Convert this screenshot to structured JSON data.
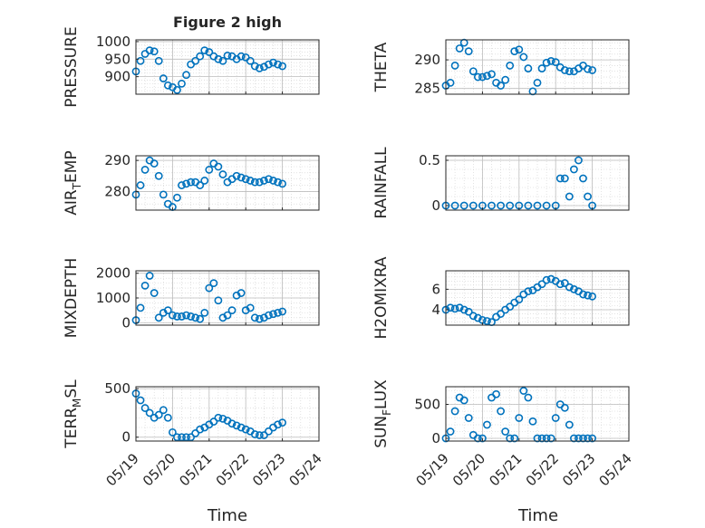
{
  "figure": {
    "title": "Figure 2 high",
    "marker_color": "#0072bd",
    "x_label": "Time"
  },
  "x_axis": {
    "range": [
      "05/19",
      "05/24"
    ],
    "ticks": [
      "05/19",
      "05/20",
      "05/21",
      "05/22",
      "05/23",
      "05/24"
    ]
  },
  "chart_data": [
    {
      "type": "scatter",
      "title": "Figure 2 high",
      "xlabel": "Time",
      "ylabel": "PRESSURE",
      "ylim": [
        850,
        1005
      ],
      "yticks": [
        900,
        950,
        1000
      ],
      "grid": true,
      "x": [
        "05/19 00:00",
        "05/19 03:00",
        "05/19 06:00",
        "05/19 09:00",
        "05/19 12:00",
        "05/19 15:00",
        "05/19 18:00",
        "05/19 21:00",
        "05/20 00:00",
        "05/20 03:00",
        "05/20 06:00",
        "05/20 09:00",
        "05/20 12:00",
        "05/20 15:00",
        "05/20 18:00",
        "05/20 21:00",
        "05/21 00:00",
        "05/21 03:00",
        "05/21 06:00",
        "05/21 09:00",
        "05/21 12:00",
        "05/21 15:00",
        "05/21 18:00",
        "05/21 21:00",
        "05/22 00:00",
        "05/22 03:00",
        "05/22 06:00",
        "05/22 09:00",
        "05/22 12:00",
        "05/22 15:00",
        "05/22 18:00",
        "05/22 21:00",
        "05/23 00:00"
      ],
      "values": [
        915,
        945,
        965,
        975,
        972,
        945,
        895,
        875,
        870,
        862,
        880,
        905,
        935,
        945,
        958,
        975,
        970,
        958,
        950,
        945,
        960,
        958,
        950,
        958,
        955,
        945,
        930,
        924,
        928,
        935,
        940,
        935,
        930
      ]
    },
    {
      "type": "scatter",
      "ylabel": "THETA",
      "ylim": [
        284,
        293.5
      ],
      "yticks": [
        285,
        290
      ],
      "grid": true,
      "x": [
        "05/19 00:00",
        "05/19 03:00",
        "05/19 06:00",
        "05/19 09:00",
        "05/19 12:00",
        "05/19 15:00",
        "05/19 18:00",
        "05/19 21:00",
        "05/20 00:00",
        "05/20 03:00",
        "05/20 06:00",
        "05/20 09:00",
        "05/20 12:00",
        "05/20 15:00",
        "05/20 18:00",
        "05/20 21:00",
        "05/21 00:00",
        "05/21 03:00",
        "05/21 06:00",
        "05/21 09:00",
        "05/21 12:00",
        "05/21 15:00",
        "05/21 18:00",
        "05/21 21:00",
        "05/22 00:00",
        "05/22 03:00",
        "05/22 06:00",
        "05/22 09:00",
        "05/22 12:00",
        "05/22 15:00",
        "05/22 18:00",
        "05/22 21:00",
        "05/23 00:00"
      ],
      "values": [
        285.5,
        286,
        289,
        292,
        293,
        291.5,
        288,
        287,
        287,
        287.2,
        287.5,
        286,
        285.5,
        286.5,
        289,
        291.5,
        291.8,
        290.5,
        288.5,
        284.5,
        286,
        288.5,
        289.5,
        289.8,
        289.6,
        288.7,
        288.2,
        288,
        288,
        288.5,
        289,
        288.4,
        288.2
      ]
    },
    {
      "type": "scatter",
      "ylabel": "AIR_TEMP",
      "ylim": [
        274,
        291.5
      ],
      "yticks": [
        280,
        290
      ],
      "grid": true,
      "x": [
        "05/19 00:00",
        "05/19 03:00",
        "05/19 06:00",
        "05/19 09:00",
        "05/19 12:00",
        "05/19 15:00",
        "05/19 18:00",
        "05/19 21:00",
        "05/20 00:00",
        "05/20 03:00",
        "05/20 06:00",
        "05/20 09:00",
        "05/20 12:00",
        "05/20 15:00",
        "05/20 18:00",
        "05/20 21:00",
        "05/21 00:00",
        "05/21 03:00",
        "05/21 06:00",
        "05/21 09:00",
        "05/21 12:00",
        "05/21 15:00",
        "05/21 18:00",
        "05/21 21:00",
        "05/22 00:00",
        "05/22 03:00",
        "05/22 06:00",
        "05/22 09:00",
        "05/22 12:00",
        "05/22 15:00",
        "05/22 18:00",
        "05/22 21:00",
        "05/23 00:00"
      ],
      "values": [
        279,
        282,
        287,
        290,
        289,
        285,
        279,
        276,
        275,
        278,
        282,
        282.5,
        283,
        283,
        282,
        283.5,
        287,
        289,
        288,
        285.5,
        283,
        284,
        285,
        284.5,
        284,
        283.5,
        283,
        283,
        283.5,
        284,
        283.5,
        283,
        282.5
      ]
    },
    {
      "type": "scatter",
      "ylabel": "RAINFALL",
      "ylim": [
        -0.05,
        0.55
      ],
      "yticks": [
        0,
        0.5
      ],
      "grid": true,
      "x": [
        "05/19 00:00",
        "05/19 06:00",
        "05/19 12:00",
        "05/19 18:00",
        "05/20 00:00",
        "05/20 06:00",
        "05/20 12:00",
        "05/20 18:00",
        "05/21 00:00",
        "05/21 06:00",
        "05/21 12:00",
        "05/21 18:00",
        "05/22 00:00",
        "05/22 03:00",
        "05/22 06:00",
        "05/22 09:00",
        "05/22 12:00",
        "05/22 15:00",
        "05/22 18:00",
        "05/22 21:00",
        "05/23 00:00"
      ],
      "values": [
        0,
        0,
        0,
        0,
        0,
        0,
        0,
        0,
        0,
        0,
        0,
        0,
        0,
        0.3,
        0.3,
        0.1,
        0.4,
        0.5,
        0.3,
        0.1,
        0
      ]
    },
    {
      "type": "scatter",
      "ylabel": "MIXDEPTH",
      "ylim": [
        -100,
        2100
      ],
      "yticks": [
        0,
        1000,
        2000
      ],
      "grid": true,
      "x": [
        "05/19 00:00",
        "05/19 03:00",
        "05/19 06:00",
        "05/19 09:00",
        "05/19 12:00",
        "05/19 15:00",
        "05/19 18:00",
        "05/19 21:00",
        "05/20 00:00",
        "05/20 03:00",
        "05/20 06:00",
        "05/20 09:00",
        "05/20 12:00",
        "05/20 15:00",
        "05/20 18:00",
        "05/20 21:00",
        "05/21 00:00",
        "05/21 03:00",
        "05/21 06:00",
        "05/21 09:00",
        "05/21 12:00",
        "05/21 15:00",
        "05/21 18:00",
        "05/21 21:00",
        "05/22 00:00",
        "05/22 03:00",
        "05/22 06:00",
        "05/22 09:00",
        "05/22 12:00",
        "05/22 15:00",
        "05/22 18:00",
        "05/22 21:00",
        "05/23 00:00"
      ],
      "values": [
        100,
        600,
        1500,
        1900,
        1200,
        200,
        400,
        500,
        300,
        250,
        250,
        300,
        250,
        200,
        150,
        400,
        1400,
        1600,
        900,
        200,
        300,
        500,
        1100,
        1200,
        500,
        600,
        200,
        150,
        200,
        300,
        350,
        400,
        450
      ]
    },
    {
      "type": "scatter",
      "ylabel": "H2OMIXRA",
      "ylim": [
        2.5,
        7.8
      ],
      "yticks": [
        4,
        6
      ],
      "grid": true,
      "x": [
        "05/19 00:00",
        "05/19 03:00",
        "05/19 06:00",
        "05/19 09:00",
        "05/19 12:00",
        "05/19 15:00",
        "05/19 18:00",
        "05/19 21:00",
        "05/20 00:00",
        "05/20 03:00",
        "05/20 06:00",
        "05/20 09:00",
        "05/20 12:00",
        "05/20 15:00",
        "05/20 18:00",
        "05/20 21:00",
        "05/21 00:00",
        "05/21 03:00",
        "05/21 06:00",
        "05/21 09:00",
        "05/21 12:00",
        "05/21 15:00",
        "05/21 18:00",
        "05/21 21:00",
        "05/22 00:00",
        "05/22 03:00",
        "05/22 06:00",
        "05/22 09:00",
        "05/22 12:00",
        "05/22 15:00",
        "05/22 18:00",
        "05/22 21:00",
        "05/23 00:00"
      ],
      "values": [
        4,
        4.2,
        4.1,
        4.2,
        4.0,
        3.8,
        3.4,
        3.2,
        3.0,
        2.9,
        2.8,
        3.3,
        3.6,
        4.0,
        4.3,
        4.7,
        5.0,
        5.5,
        5.8,
        5.9,
        6.2,
        6.5,
        6.9,
        7.0,
        6.8,
        6.5,
        6.6,
        6.2,
        6.0,
        5.8,
        5.5,
        5.4,
        5.3
      ]
    },
    {
      "type": "scatter",
      "ylabel": "TERR_MSL",
      "ylim": [
        -40,
        520
      ],
      "yticks": [
        0,
        500
      ],
      "grid": true,
      "x": [
        "05/19 00:00",
        "05/19 03:00",
        "05/19 06:00",
        "05/19 09:00",
        "05/19 12:00",
        "05/19 15:00",
        "05/19 18:00",
        "05/19 21:00",
        "05/20 00:00",
        "05/20 03:00",
        "05/20 06:00",
        "05/20 09:00",
        "05/20 12:00",
        "05/20 15:00",
        "05/20 18:00",
        "05/20 21:00",
        "05/21 00:00",
        "05/21 03:00",
        "05/21 06:00",
        "05/21 09:00",
        "05/21 12:00",
        "05/21 15:00",
        "05/21 18:00",
        "05/21 21:00",
        "05/22 00:00",
        "05/22 03:00",
        "05/22 06:00",
        "05/22 09:00",
        "05/22 12:00",
        "05/22 15:00",
        "05/22 18:00",
        "05/22 21:00",
        "05/23 00:00"
      ],
      "values": [
        450,
        380,
        300,
        250,
        200,
        230,
        280,
        200,
        50,
        0,
        0,
        0,
        0,
        40,
        80,
        100,
        130,
        160,
        200,
        190,
        170,
        140,
        120,
        100,
        80,
        60,
        30,
        20,
        20,
        60,
        100,
        130,
        150
      ]
    },
    {
      "type": "scatter",
      "ylabel": "SUN_FLUX",
      "ylim": [
        -40,
        760
      ],
      "yticks": [
        0,
        500
      ],
      "grid": true,
      "x": [
        "05/19 00:00",
        "05/19 03:00",
        "05/19 06:00",
        "05/19 09:00",
        "05/19 12:00",
        "05/19 15:00",
        "05/19 18:00",
        "05/19 21:00",
        "05/20 00:00",
        "05/20 03:00",
        "05/20 06:00",
        "05/20 09:00",
        "05/20 12:00",
        "05/20 15:00",
        "05/20 18:00",
        "05/20 21:00",
        "05/21 00:00",
        "05/21 03:00",
        "05/21 06:00",
        "05/21 09:00",
        "05/21 12:00",
        "05/21 15:00",
        "05/21 18:00",
        "05/21 21:00",
        "05/22 00:00",
        "05/22 03:00",
        "05/22 06:00",
        "05/22 09:00",
        "05/22 12:00",
        "05/22 15:00",
        "05/22 18:00",
        "05/22 21:00",
        "05/23 00:00"
      ],
      "values": [
        0,
        100,
        400,
        600,
        560,
        300,
        50,
        0,
        0,
        200,
        600,
        650,
        400,
        100,
        0,
        0,
        300,
        700,
        600,
        250,
        0,
        0,
        0,
        0,
        300,
        500,
        450,
        200,
        0,
        0,
        0,
        0,
        0
      ]
    }
  ]
}
